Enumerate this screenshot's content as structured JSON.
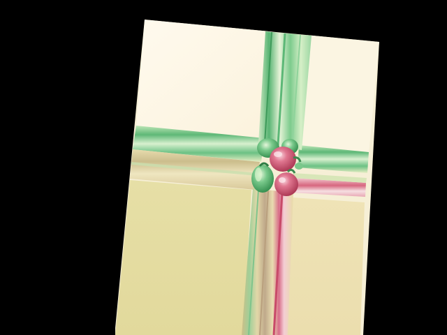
{
  "image": {
    "description_label": "",
    "colors": {
      "background": "#000000",
      "cream_light": "#fdf7e8",
      "cream_top_right": "#fbf6e4",
      "khaki_bottom_left": "#e3dba0",
      "sand_bottom_right": "#ece0b0",
      "green_band": "#7fc88f",
      "green_dark": "#3f9a5a",
      "green_light": "#c7ebc0",
      "pink": "#e07790",
      "pink_dark": "#b73b5b",
      "beige_stripe": "#d9c9a0"
    },
    "objects": [
      "green-pepper-icon",
      "red-pepper-icon"
    ]
  }
}
